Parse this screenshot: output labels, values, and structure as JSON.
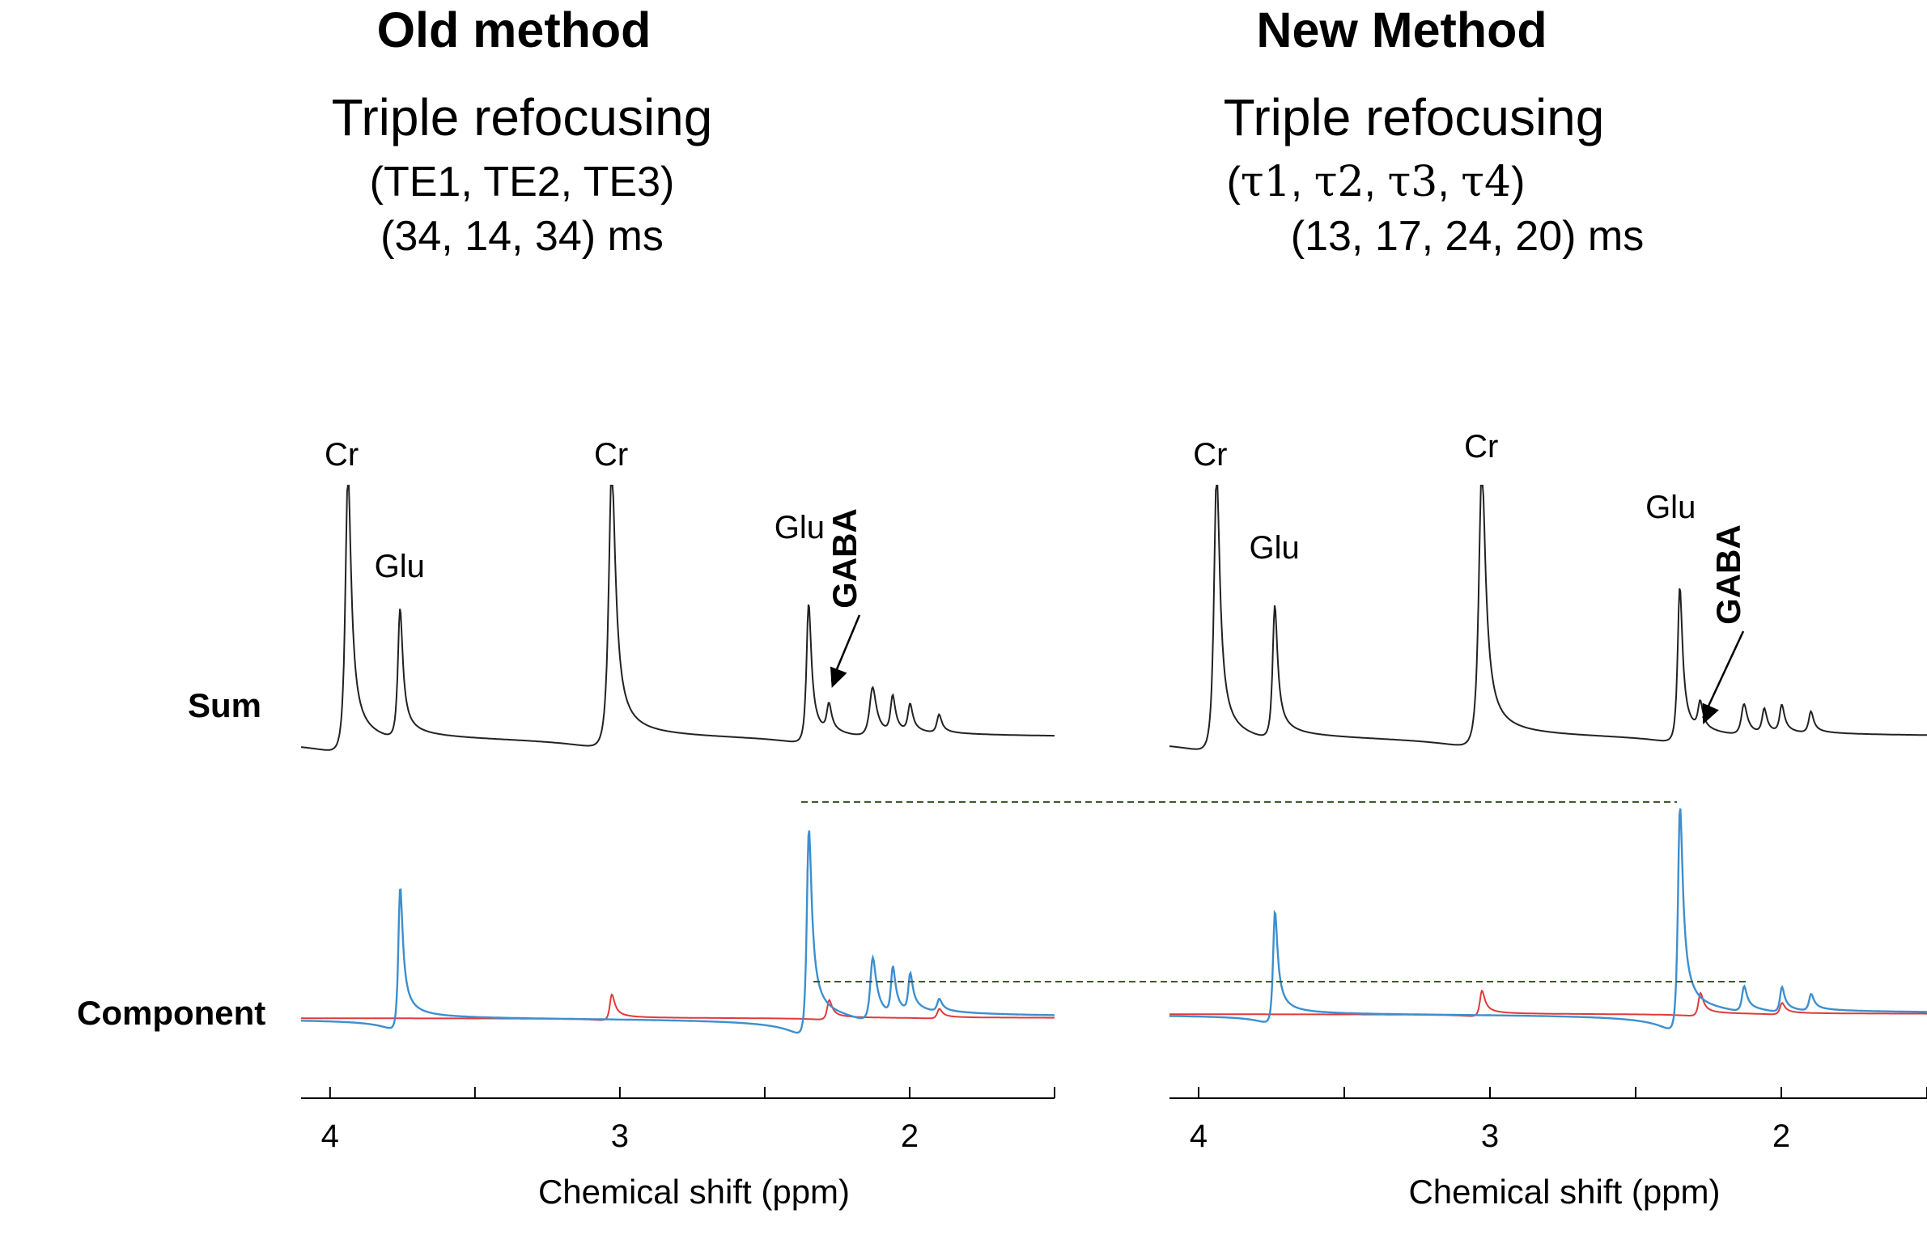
{
  "panels": [
    {
      "title": "Old method",
      "subtitle1": "Triple refocusing",
      "subtitle2_prefix": "(TE1, TE2, TE3)",
      "subtitle3": "(34, 14, 34) ms"
    },
    {
      "title": "New Method",
      "subtitle1": "Triple refocusing",
      "subtitle2_open": "(",
      "subtitle2_t1": "τ1",
      "subtitle2_sep1": ", ",
      "subtitle2_t2": "τ2",
      "subtitle2_sep2": ", ",
      "subtitle2_t3": "τ3",
      "subtitle2_sep3": ", ",
      "subtitle2_t4": "τ4",
      "subtitle2_close": ")",
      "subtitle3": "(13, 17, 24, 20) ms"
    }
  ],
  "row_labels": {
    "sum": "Sum",
    "component": "Component"
  },
  "colors": {
    "sum": "#222222",
    "component_blue": "#3d8fcf",
    "component_red": "#e03a3a",
    "dashed": "#3e5a2e"
  },
  "chart_data": [
    {
      "type": "line",
      "title": "Old method",
      "xlabel": "Chemical shift (ppm)",
      "xlim": [
        4.1,
        1.5
      ],
      "xticks": [
        4,
        3,
        2
      ],
      "xtick_labels": [
        "4",
        "3",
        "2"
      ],
      "series": [
        {
          "name": "Sum",
          "color": "#222222",
          "peaks": [
            {
              "ppm": 3.94,
              "amp": 9.0,
              "width": 0.012
            },
            {
              "ppm": 3.76,
              "amp": 4.2,
              "width": 0.01
            },
            {
              "ppm": 3.03,
              "amp": 9.0,
              "width": 0.014
            },
            {
              "ppm": 2.35,
              "amp": 4.5,
              "width": 0.01
            },
            {
              "ppm": 2.28,
              "amp": 0.9,
              "width": 0.01
            },
            {
              "ppm": 2.13,
              "amp": 1.6,
              "width": 0.014
            },
            {
              "ppm": 2.06,
              "amp": 1.2,
              "width": 0.01
            },
            {
              "ppm": 2.0,
              "amp": 0.9,
              "width": 0.01
            },
            {
              "ppm": 1.9,
              "amp": 0.6,
              "width": 0.01
            }
          ]
        },
        {
          "name": "Component (blue)",
          "color": "#3d8fcf",
          "peaks": [
            {
              "ppm": 3.76,
              "amp": 4.5,
              "width": 0.009
            },
            {
              "ppm": 2.35,
              "amp": 6.5,
              "width": 0.01
            },
            {
              "ppm": 2.13,
              "amp": 2.0,
              "width": 0.012
            },
            {
              "ppm": 2.06,
              "amp": 1.5,
              "width": 0.009
            },
            {
              "ppm": 2.0,
              "amp": 1.2,
              "width": 0.009
            },
            {
              "ppm": 1.9,
              "amp": 0.4,
              "width": 0.01
            }
          ]
        },
        {
          "name": "Component (red)",
          "color": "#e03a3a",
          "peaks": [
            {
              "ppm": 3.03,
              "amp": 0.8,
              "width": 0.01
            },
            {
              "ppm": 2.28,
              "amp": 0.6,
              "width": 0.01
            },
            {
              "ppm": 1.9,
              "amp": 0.3,
              "width": 0.01
            }
          ]
        }
      ],
      "annotations": [
        {
          "label": "Cr",
          "ppm": 3.96
        },
        {
          "label": "Glu",
          "ppm": 3.76
        },
        {
          "label": "Cr",
          "ppm": 3.03
        },
        {
          "label": "Glu",
          "ppm": 2.38
        },
        {
          "label": "GABA",
          "ppm": 2.28
        }
      ]
    },
    {
      "type": "line",
      "title": "New Method",
      "xlabel": "Chemical shift (ppm)",
      "xlim": [
        4.1,
        1.5
      ],
      "xticks": [
        4,
        3,
        2
      ],
      "xtick_labels": [
        "4",
        "3",
        "2"
      ],
      "series": [
        {
          "name": "Sum",
          "color": "#222222",
          "peaks": [
            {
              "ppm": 3.94,
              "amp": 9.0,
              "width": 0.012
            },
            {
              "ppm": 3.74,
              "amp": 4.3,
              "width": 0.01
            },
            {
              "ppm": 3.03,
              "amp": 9.0,
              "width": 0.014
            },
            {
              "ppm": 2.35,
              "amp": 5.0,
              "width": 0.01
            },
            {
              "ppm": 2.28,
              "amp": 0.9,
              "width": 0.01
            },
            {
              "ppm": 2.13,
              "amp": 1.0,
              "width": 0.012
            },
            {
              "ppm": 2.06,
              "amp": 0.8,
              "width": 0.01
            },
            {
              "ppm": 2.0,
              "amp": 0.9,
              "width": 0.01
            },
            {
              "ppm": 1.9,
              "amp": 0.7,
              "width": 0.01
            }
          ]
        },
        {
          "name": "Component (blue)",
          "color": "#3d8fcf",
          "peaks": [
            {
              "ppm": 3.74,
              "amp": 4.0,
              "width": 0.009
            },
            {
              "ppm": 2.35,
              "amp": 8.0,
              "width": 0.01
            },
            {
              "ppm": 2.13,
              "amp": 0.9,
              "width": 0.01
            },
            {
              "ppm": 2.0,
              "amp": 0.9,
              "width": 0.009
            },
            {
              "ppm": 1.9,
              "amp": 0.6,
              "width": 0.01
            }
          ]
        },
        {
          "name": "Component (red)",
          "color": "#e03a3a",
          "peaks": [
            {
              "ppm": 3.03,
              "amp": 0.9,
              "width": 0.01
            },
            {
              "ppm": 2.28,
              "amp": 0.8,
              "width": 0.01
            },
            {
              "ppm": 2.0,
              "amp": 0.4,
              "width": 0.01
            }
          ]
        }
      ],
      "annotations": [
        {
          "label": "Cr",
          "ppm": 3.96
        },
        {
          "label": "Glu",
          "ppm": 3.74
        },
        {
          "label": "Cr",
          "ppm": 3.03
        },
        {
          "label": "Glu",
          "ppm": 2.38
        },
        {
          "label": "GABA",
          "ppm": 2.28
        }
      ]
    }
  ]
}
